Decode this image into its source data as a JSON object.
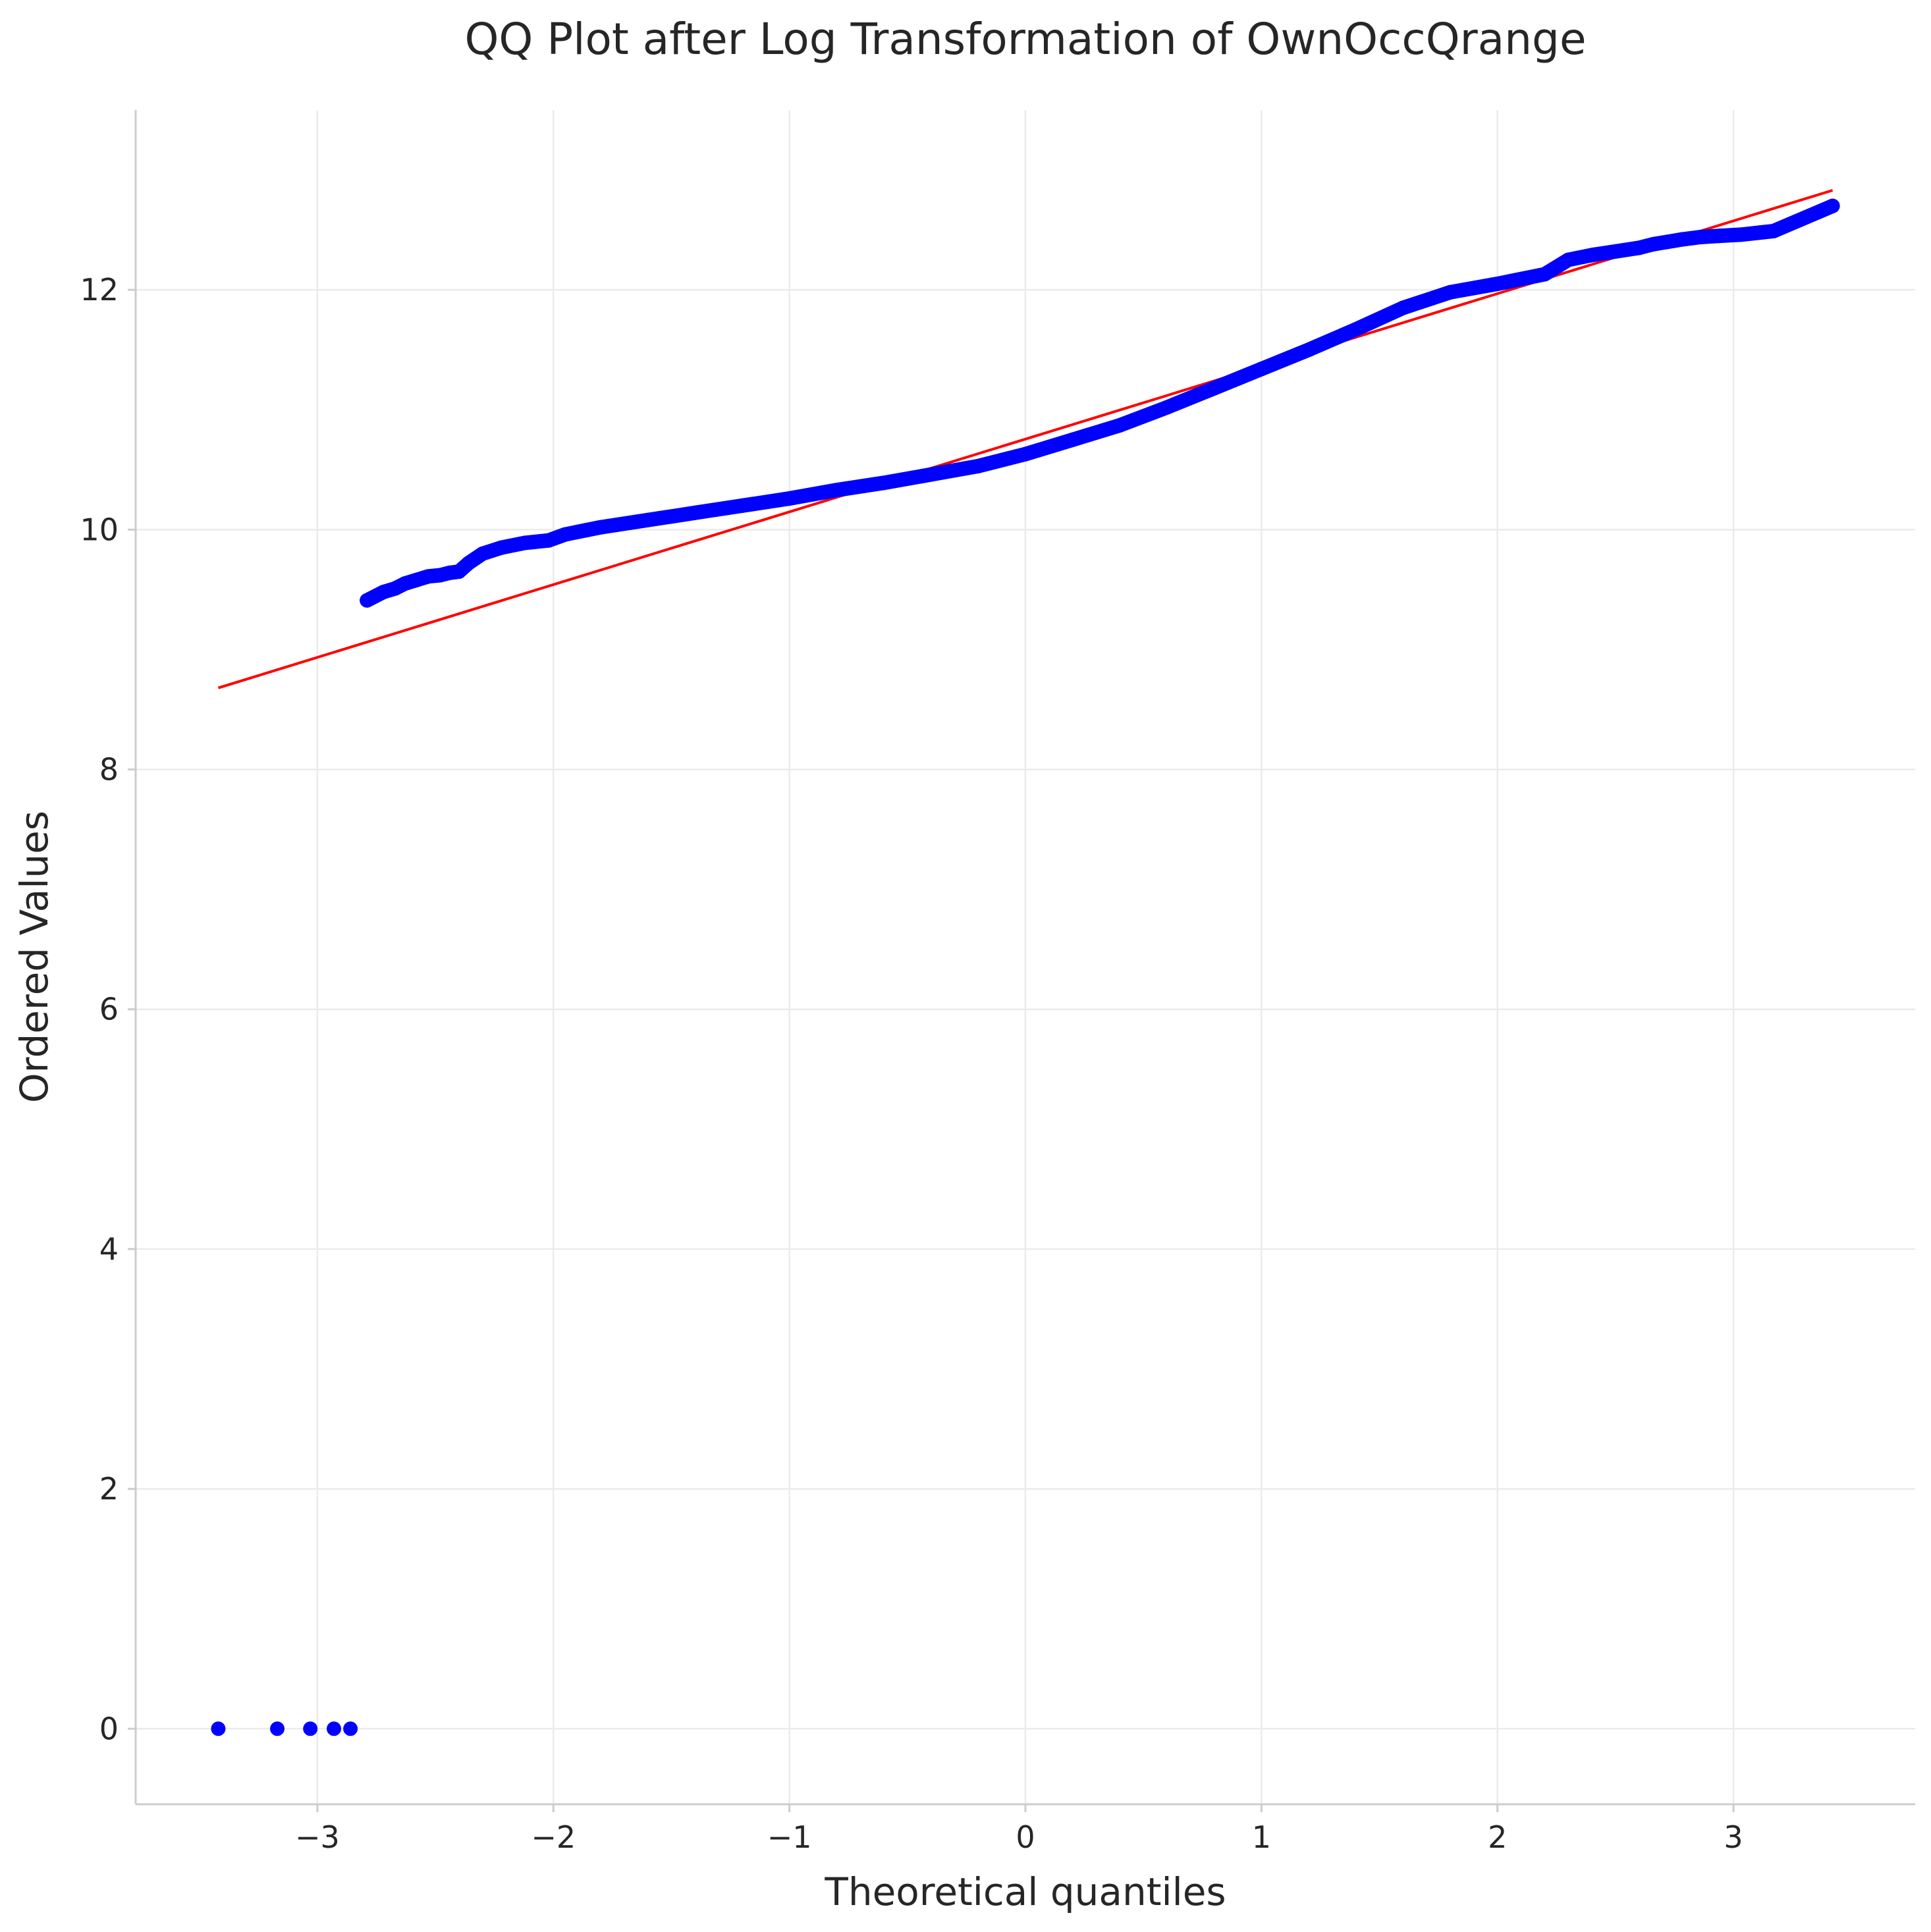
{
  "chart_data": {
    "type": "scatter",
    "title": "QQ Plot after Log Transformation of OwnOccQrange",
    "xlabel": "Theoretical quantiles",
    "ylabel": "Ordered Values",
    "xlim": [
      -3.77,
      3.77
    ],
    "ylim": [
      -0.63,
      13.5
    ],
    "x_ticks": [
      -3,
      -2,
      -1,
      0,
      1,
      2,
      3
    ],
    "x_tick_labels": [
      "−3",
      "−2",
      "−1",
      "0",
      "1",
      "2",
      "3"
    ],
    "y_ticks": [
      0,
      2,
      4,
      6,
      8,
      10,
      12
    ],
    "y_tick_labels": [
      "0",
      "2",
      "4",
      "6",
      "8",
      "10",
      "12"
    ],
    "grid": true,
    "legend": "none",
    "series": [
      {
        "kind": "points",
        "color": "#0000ff",
        "x": [
          -3.42,
          -3.17,
          -3.03,
          -2.93,
          -2.86,
          -2.79,
          -2.72,
          -2.67,
          -2.63,
          -2.58,
          -2.53,
          -2.48,
          -2.44,
          -2.4,
          -2.36,
          -2.3,
          -2.22,
          -2.12,
          -2.02,
          -1.95,
          -1.8,
          -1.6,
          -1.4,
          -1.2,
          -1.0,
          -0.8,
          -0.6,
          -0.4,
          -0.2,
          0.0,
          0.2,
          0.4,
          0.6,
          0.8,
          1.0,
          1.2,
          1.4,
          1.6,
          1.8,
          2.0,
          2.2,
          2.3,
          2.4,
          2.5,
          2.6,
          2.66,
          2.72,
          2.78,
          2.86,
          2.94,
          3.03,
          3.17,
          3.42
        ],
        "y": [
          0.0,
          0.0,
          0.0,
          0.0,
          0.0,
          9.41,
          9.48,
          9.51,
          9.55,
          9.58,
          9.61,
          9.62,
          9.64,
          9.65,
          9.72,
          9.8,
          9.85,
          9.89,
          9.91,
          9.96,
          10.02,
          10.08,
          10.14,
          10.2,
          10.26,
          10.33,
          10.39,
          10.46,
          10.53,
          10.63,
          10.75,
          10.87,
          11.02,
          11.18,
          11.34,
          11.5,
          11.67,
          11.85,
          11.98,
          12.05,
          12.13,
          12.25,
          12.29,
          12.32,
          12.35,
          12.38,
          12.4,
          12.42,
          12.44,
          12.45,
          12.46,
          12.49,
          12.7
        ]
      },
      {
        "kind": "fit-line",
        "color": "#ff0000",
        "x": [
          -3.42,
          3.42
        ],
        "y": [
          8.68,
          12.83
        ]
      }
    ]
  }
}
